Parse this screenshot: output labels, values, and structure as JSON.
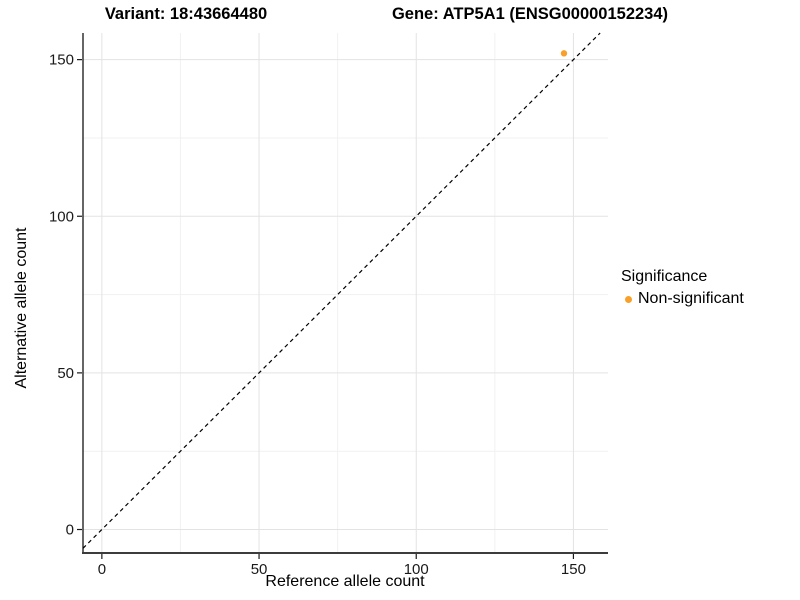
{
  "titles": {
    "variant": "Variant: 18:43664480",
    "gene": "Gene: ATP5A1 (ENSG00000152234)"
  },
  "axes": {
    "x": {
      "label": "Reference allele count",
      "tick_labels": [
        "0",
        "50",
        "100",
        "150"
      ]
    },
    "y": {
      "label": "Alternative allele count",
      "tick_labels": [
        "0",
        "50",
        "100",
        "150"
      ]
    }
  },
  "legend": {
    "title": "Significance",
    "items": [
      {
        "label": "Non-significant",
        "color": "#F8A029"
      }
    ]
  },
  "chart_data": {
    "type": "scatter",
    "title": "Variant: 18:43664480 — Gene: ATP5A1 (ENSG00000152234)",
    "xlabel": "Reference allele count",
    "ylabel": "Alternative allele count",
    "series": [
      {
        "name": "Non-significant",
        "color": "#F8A029",
        "points": [
          {
            "x": 147,
            "y": 152
          }
        ]
      }
    ],
    "reference_line": {
      "type": "identity",
      "slope": 1,
      "intercept": 0,
      "style": "dashed",
      "color": "#000000"
    },
    "x_ticks": [
      0,
      50,
      100,
      150
    ],
    "y_ticks": [
      0,
      50,
      100,
      150
    ],
    "xlim": [
      -6,
      161
    ],
    "ylim": [
      -7.5,
      158.5
    ],
    "grid": true,
    "legend_position": "right"
  }
}
